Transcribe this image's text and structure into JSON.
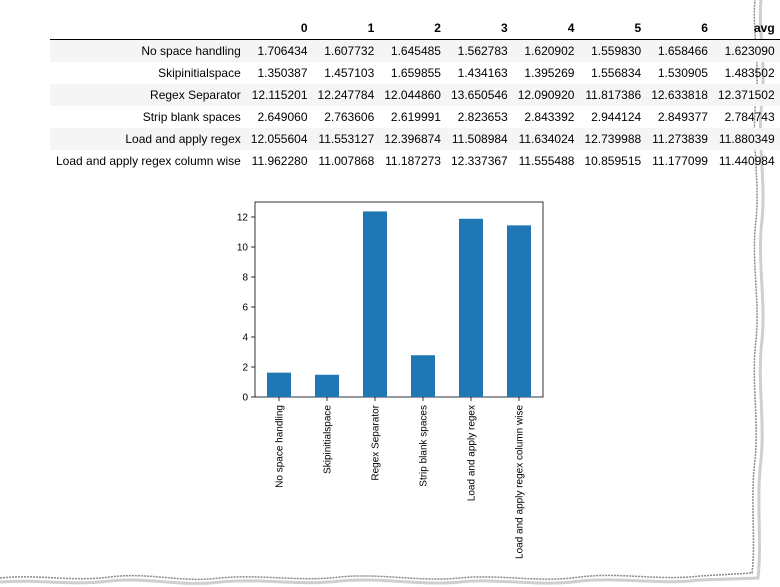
{
  "table": {
    "columns": [
      "",
      "0",
      "1",
      "2",
      "3",
      "4",
      "5",
      "6",
      "avg"
    ],
    "rows": [
      {
        "label": "No space handling",
        "values": [
          "1.706434",
          "1.607732",
          "1.645485",
          "1.562783",
          "1.620902",
          "1.559830",
          "1.658466",
          "1.623090"
        ]
      },
      {
        "label": "Skipinitialspace",
        "values": [
          "1.350387",
          "1.457103",
          "1.659855",
          "1.434163",
          "1.395269",
          "1.556834",
          "1.530905",
          "1.483502"
        ]
      },
      {
        "label": "Regex Separator",
        "values": [
          "12.115201",
          "12.247784",
          "12.044860",
          "13.650546",
          "12.090920",
          "11.817386",
          "12.633818",
          "12.371502"
        ]
      },
      {
        "label": "Strip blank spaces",
        "values": [
          "2.649060",
          "2.763606",
          "2.619991",
          "2.823653",
          "2.843392",
          "2.944124",
          "2.849377",
          "2.784743"
        ]
      },
      {
        "label": "Load and apply regex",
        "values": [
          "12.055604",
          "11.553127",
          "12.396874",
          "11.508984",
          "11.634024",
          "12.739988",
          "11.273839",
          "11.880349"
        ]
      },
      {
        "label": "Load and apply regex column wise",
        "values": [
          "11.962280",
          "11.007868",
          "11.187273",
          "12.337367",
          "11.555488",
          "10.859515",
          "11.177099",
          "11.440984"
        ]
      }
    ]
  },
  "chart_data": {
    "type": "bar",
    "categories": [
      "No space handling",
      "Skipinitialspace",
      "Regex Separator",
      "Strip blank spaces",
      "Load and apply regex",
      "Load and apply regex column wise"
    ],
    "values": [
      1.62309,
      1.483502,
      12.371502,
      2.784743,
      11.880349,
      11.440984
    ],
    "title": "",
    "xlabel": "",
    "ylabel": "",
    "ylim": [
      0,
      13.0
    ],
    "yticks": [
      "0",
      "2",
      "4",
      "6",
      "8",
      "10",
      "12"
    ],
    "bar_color": "#1f77b4",
    "grid": false,
    "legend": "none"
  }
}
